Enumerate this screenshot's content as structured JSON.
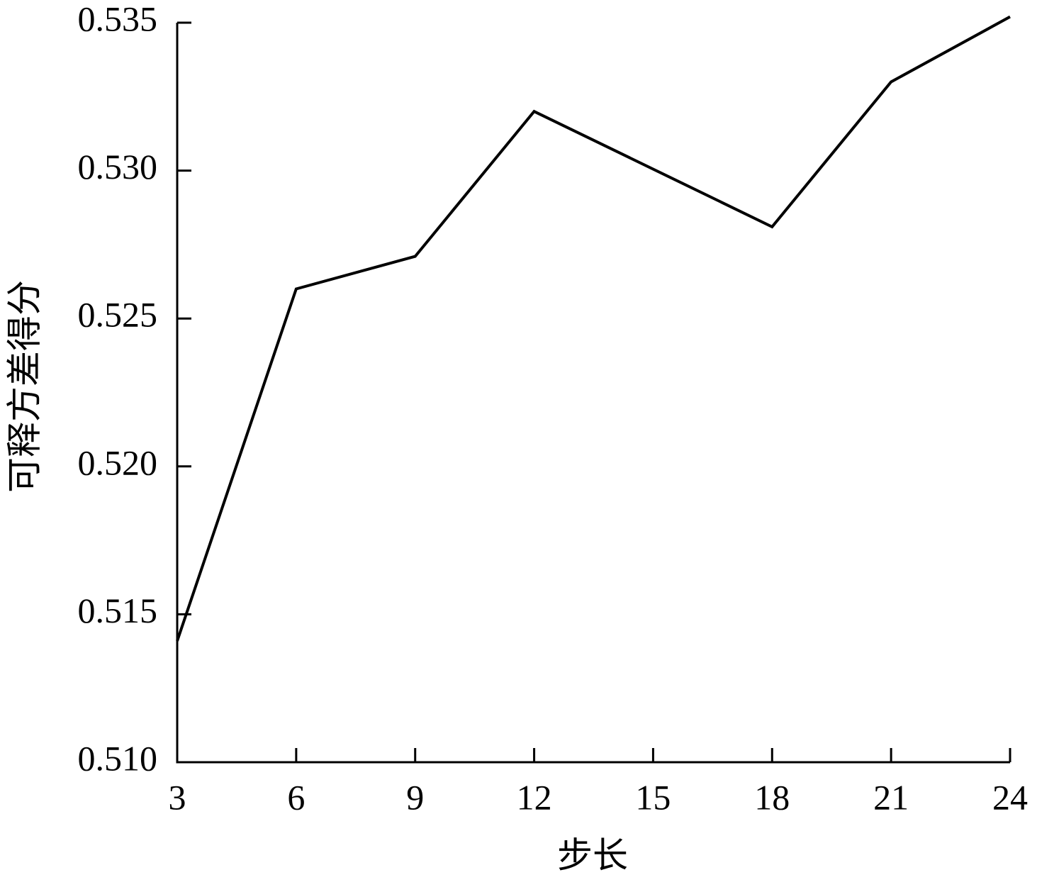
{
  "chart_data": {
    "type": "line",
    "x_label": "步长",
    "y_label": "可释方差得分",
    "x": [
      3,
      6,
      9,
      12,
      18,
      21,
      24
    ],
    "series": [
      {
        "name": "可释方差得分",
        "color": "#000000",
        "values": [
          0.5141,
          0.526,
          0.5271,
          0.532,
          0.5281,
          0.533,
          0.5352
        ]
      }
    ],
    "xlim": [
      3,
      24
    ],
    "xticks": [
      3,
      6,
      9,
      12,
      15,
      18,
      21,
      24
    ],
    "ylim": [
      0.51,
      0.535
    ],
    "yticks": [
      {
        "value": 0.51,
        "label": "0.510"
      },
      0.515,
      {
        "value": 0.52,
        "label": "0.520"
      },
      0.525,
      {
        "value": 0.53,
        "label": "0.530"
      },
      0.535
    ],
    "grid": false
  }
}
